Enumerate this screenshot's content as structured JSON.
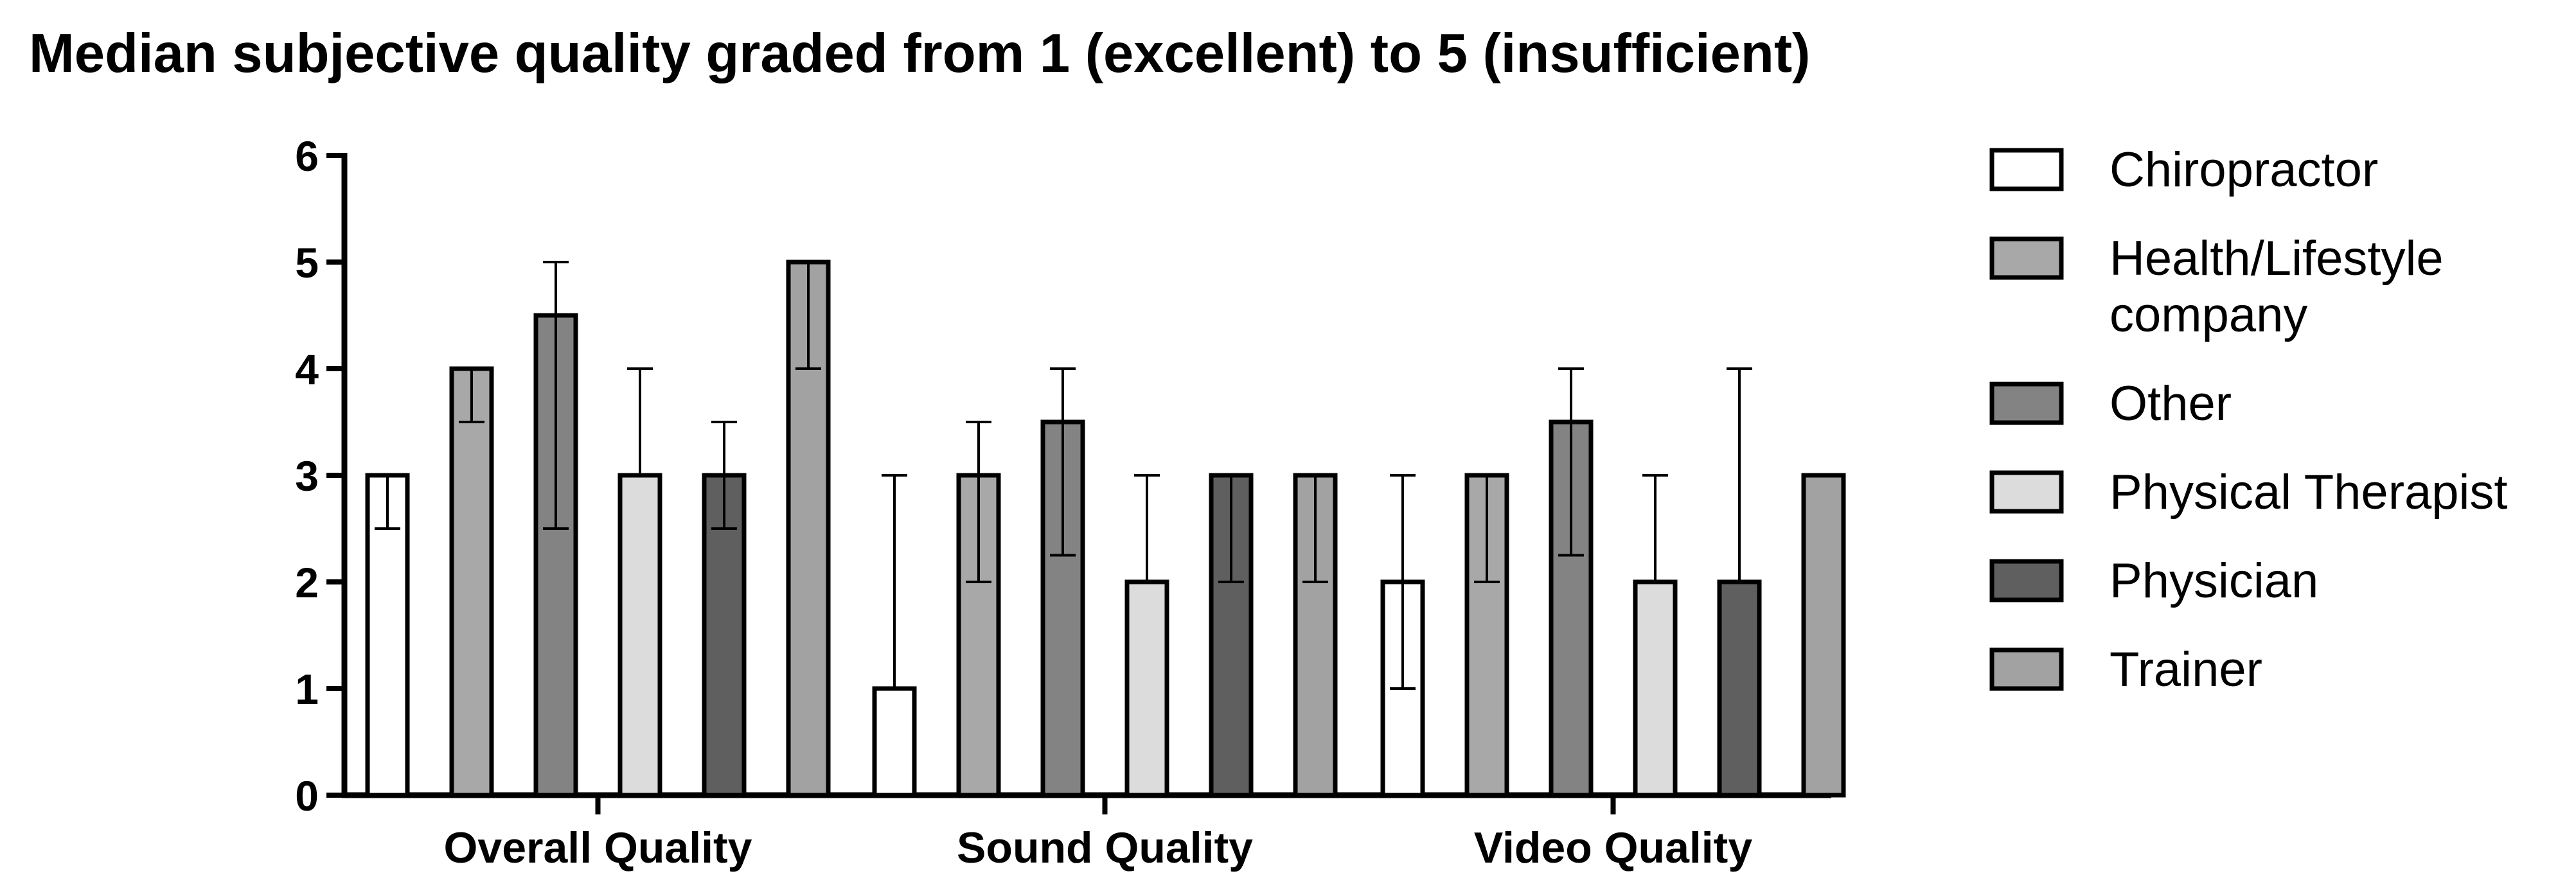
{
  "chart_data": {
    "type": "bar",
    "title": "Median subjective quality graded from 1 (excellent) to 5 (insufficient)",
    "xlabel": "",
    "ylabel": "",
    "ylim": [
      0,
      6
    ],
    "yticks": [
      0,
      1,
      2,
      3,
      4,
      5,
      6
    ],
    "grid": false,
    "legend_position": "right",
    "categories": [
      "Overall Quality",
      "Sound Quality",
      "Video Quality"
    ],
    "series": [
      {
        "name": "Chiropractor",
        "legend_lines": [
          "Chiropractor"
        ],
        "color": "#ffffff",
        "values": [
          3,
          1,
          2
        ],
        "error_low": [
          2.5,
          1,
          1
        ],
        "error_high": [
          3,
          3,
          3
        ]
      },
      {
        "name": "Health/Lifestyle company",
        "legend_lines": [
          "Health/Lifestyle",
          "company"
        ],
        "color": "#a8a8a8",
        "values": [
          4,
          3,
          3
        ],
        "error_low": [
          3.5,
          2,
          2
        ],
        "error_high": [
          4,
          3.5,
          3
        ]
      },
      {
        "name": "Other",
        "legend_lines": [
          "Other"
        ],
        "color": "#838383",
        "values": [
          4.5,
          3.5,
          3.5
        ],
        "error_low": [
          2.5,
          2.25,
          2.25
        ],
        "error_high": [
          5,
          4,
          4
        ]
      },
      {
        "name": "Physical Therapist",
        "legend_lines": [
          "Physical Therapist"
        ],
        "color": "#dcdcdc",
        "values": [
          3,
          2,
          2
        ],
        "error_low": [
          3,
          2,
          2
        ],
        "error_high": [
          4,
          3,
          3
        ]
      },
      {
        "name": "Physician",
        "legend_lines": [
          "Physician"
        ],
        "color": "#5f5f5f",
        "values": [
          3,
          3,
          2
        ],
        "error_low": [
          2.5,
          2,
          2
        ],
        "error_high": [
          3.5,
          3,
          4
        ]
      },
      {
        "name": "Trainer",
        "legend_lines": [
          "Trainer"
        ],
        "color": "#a2a2a2",
        "values": [
          5,
          3,
          3
        ],
        "error_low": [
          4,
          2,
          3
        ],
        "error_high": [
          5,
          3,
          3
        ]
      }
    ]
  }
}
